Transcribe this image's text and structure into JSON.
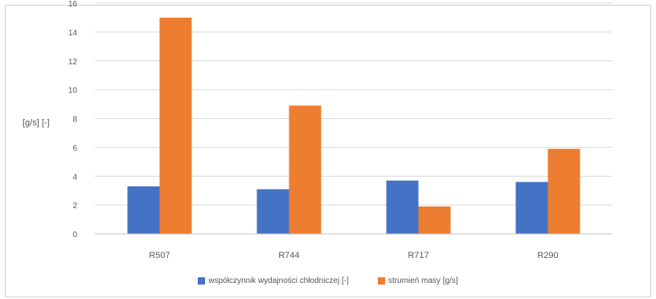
{
  "chart_data": {
    "type": "bar",
    "categories": [
      "R507",
      "R744",
      "R717",
      "R290"
    ],
    "series": [
      {
        "name": "współczynnik wydajności chłodniczej [-]",
        "color": "#4472c4",
        "values": [
          3.3,
          3.1,
          3.7,
          3.6
        ]
      },
      {
        "name": "strumień masy [g/s]",
        "color": "#ed7d31",
        "values": [
          15.0,
          8.9,
          1.9,
          5.9
        ]
      }
    ],
    "ylabel": "[g/s] [-]",
    "ylim": [
      0,
      16
    ],
    "yticks": [
      0,
      2,
      4,
      6,
      8,
      10,
      12,
      14,
      16
    ],
    "grid": true,
    "legend": "bottom"
  }
}
